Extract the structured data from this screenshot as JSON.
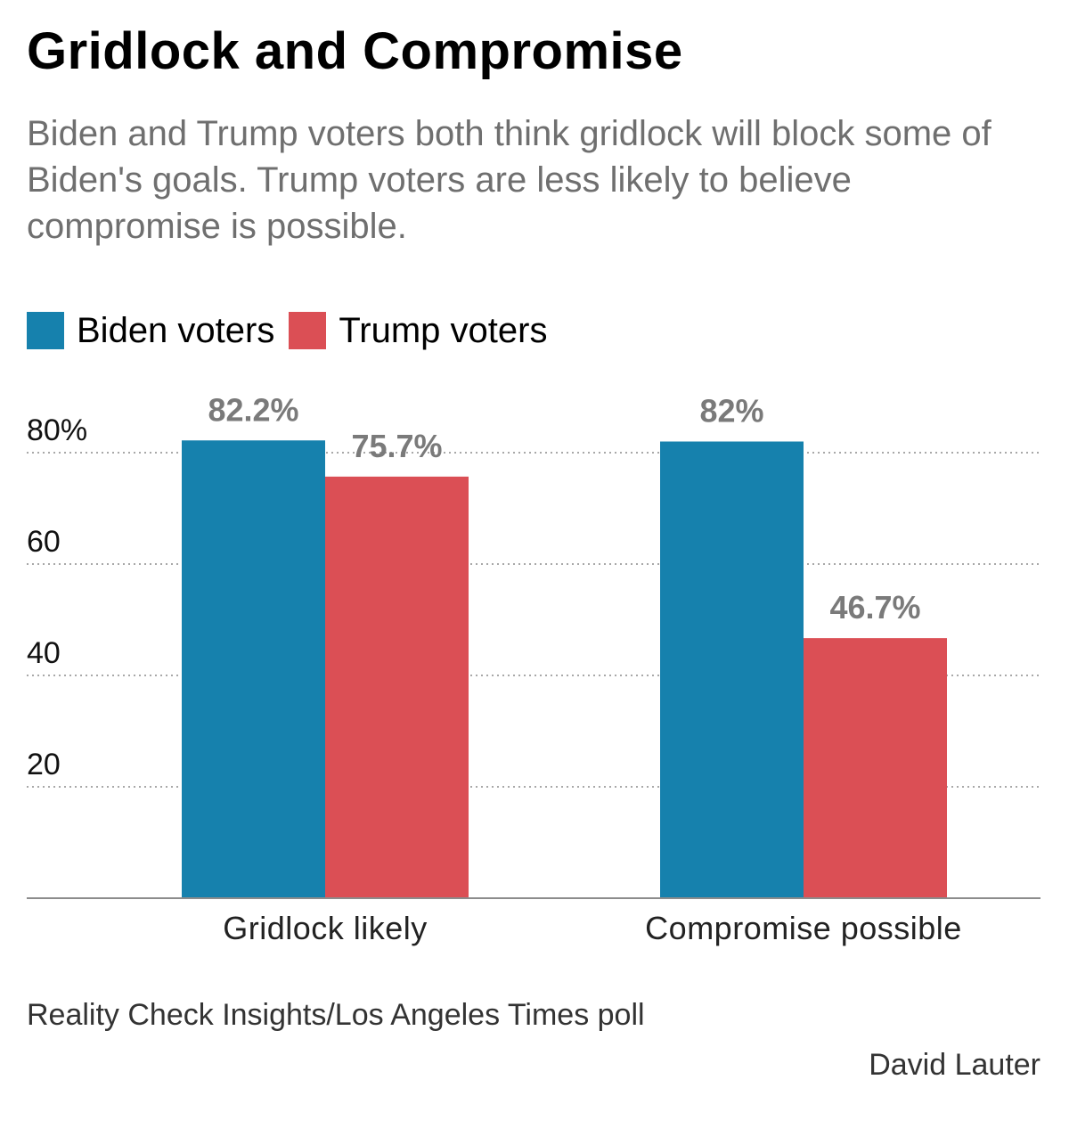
{
  "header": {
    "title": "Gridlock and Compromise",
    "subtitle": "Biden and Trump voters both think gridlock will block some of Biden's goals. Trump voters are less likely to believe compromise is possible."
  },
  "legend": {
    "items": [
      {
        "label": "Biden voters",
        "color": "#1681ad"
      },
      {
        "label": "Trump voters",
        "color": "#db4f55"
      }
    ]
  },
  "footer": {
    "source": "Reality Check Insights/Los Angeles Times poll",
    "credit": "David Lauter"
  },
  "chart_data": {
    "type": "bar",
    "categories": [
      "Gridlock likely",
      "Compromise possible"
    ],
    "series": [
      {
        "name": "Biden voters",
        "values": [
          82.2,
          82
        ],
        "labels": [
          "82.2%",
          "82%"
        ],
        "color": "#1681ad"
      },
      {
        "name": "Trump voters",
        "values": [
          75.7,
          46.7
        ],
        "labels": [
          "75.7%",
          "46.7%"
        ],
        "color": "#db4f55"
      }
    ],
    "yticks": [
      {
        "value": 20,
        "label": "20"
      },
      {
        "value": 40,
        "label": "40"
      },
      {
        "value": 60,
        "label": "60"
      },
      {
        "value": 80,
        "label": "80%"
      }
    ],
    "ylim": [
      0,
      100
    ],
    "grid": true,
    "legend_position": "top-left",
    "colors": {
      "label_color": "#7a7a7a",
      "grid_color": "#a8a8a8",
      "axis_color": "#8c8c8c"
    }
  }
}
